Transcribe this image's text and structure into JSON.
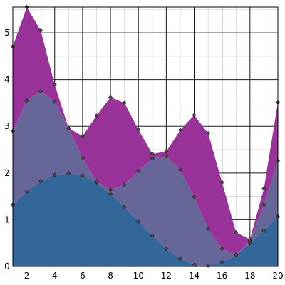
{
  "chart_data": {
    "type": "area",
    "stacked": true,
    "title": "",
    "xlabel": "",
    "ylabel": "",
    "xlim": [
      1,
      20
    ],
    "ylim": [
      0,
      5.55
    ],
    "grid": true,
    "legend": "none",
    "x": [
      1,
      2,
      3,
      4,
      5,
      6,
      7,
      8,
      9,
      10,
      11,
      12,
      13,
      14,
      15,
      16,
      17,
      18,
      19,
      20
    ],
    "x_ticks": [
      2,
      4,
      6,
      8,
      10,
      12,
      14,
      16,
      18,
      20
    ],
    "y_ticks": [
      0,
      1,
      2,
      3,
      4,
      5
    ],
    "series": [
      {
        "color": "#336699",
        "values": [
          1.32,
          1.6,
          1.83,
          1.96,
          2.0,
          1.95,
          1.8,
          1.55,
          1.27,
          0.96,
          0.66,
          0.38,
          0.17,
          0.03,
          0.02,
          0.09,
          0.25,
          0.5,
          0.77,
          1.07
        ]
      },
      {
        "color": "#666699",
        "values": [
          1.58,
          1.95,
          1.92,
          1.57,
          0.96,
          0.37,
          0.03,
          0.09,
          0.48,
          1.09,
          1.65,
          1.98,
          1.9,
          1.46,
          0.79,
          0.29,
          0.0,
          0.05,
          0.55,
          1.19
        ]
      },
      {
        "color": "#993399",
        "values": [
          1.81,
          2.0,
          1.3,
          0.36,
          0.0,
          0.47,
          1.4,
          1.98,
          1.75,
          0.88,
          0.1,
          0.1,
          0.85,
          1.75,
          2.04,
          1.42,
          0.48,
          0.03,
          0.35,
          1.25
        ]
      }
    ]
  }
}
